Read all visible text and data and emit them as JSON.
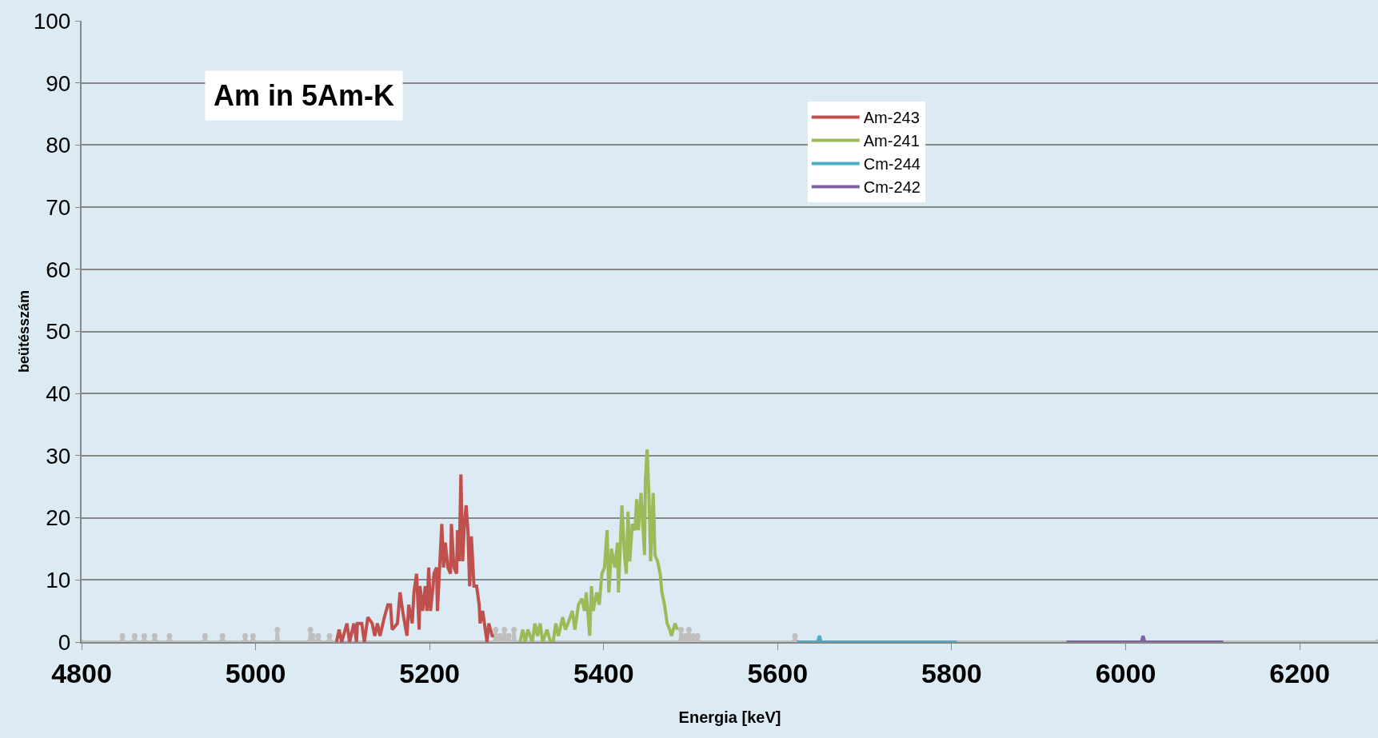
{
  "chart_data": {
    "type": "line",
    "title": "Am in 5Am-K",
    "xlabel": "Energia [keV]",
    "ylabel": "beütésszám",
    "xlim": [
      4800,
      6290
    ],
    "xticks": [
      4800,
      5000,
      5200,
      5400,
      5600,
      5800,
      6000,
      6200
    ],
    "ylim": [
      0,
      100
    ],
    "yticks": [
      0,
      10,
      20,
      30,
      40,
      50,
      60,
      70,
      80,
      90,
      100
    ],
    "grid": "y",
    "legend": "top",
    "marker": "none",
    "line_style": "solid",
    "series": [
      {
        "color": "#bfbfbf",
        "marker": "circle",
        "x": [
          4800,
          4846,
          4847,
          4848,
          4860,
          4861,
          4862,
          4871,
          4872,
          4873,
          4883,
          4884,
          4885,
          4900,
          4901,
          4902,
          4941,
          4942,
          4943,
          4961,
          4962,
          4963,
          4987,
          4988,
          4989,
          4996,
          4997,
          4998,
          5024,
          5025,
          5026,
          5062,
          5063,
          5064,
          5065,
          5066,
          5067,
          5071,
          5072,
          5073,
          5084,
          5085,
          5086,
          5275,
          5276,
          5277,
          5280,
          5281,
          5282,
          5285,
          5286,
          5287,
          5290,
          5291,
          5292,
          5296,
          5297,
          5298,
          5488,
          5489,
          5490,
          5493,
          5494,
          5495,
          5497,
          5498,
          5499,
          5502,
          5503,
          5504,
          5507,
          5508,
          5509,
          5619,
          5620,
          5621,
          6290
        ],
        "values": [
          0,
          0,
          1,
          0,
          0,
          1,
          0,
          0,
          1,
          0,
          0,
          1,
          0,
          0,
          1,
          0,
          0,
          1,
          0,
          0,
          1,
          0,
          0,
          1,
          0,
          0,
          1,
          0,
          0,
          2,
          0,
          0,
          2,
          0,
          0,
          1,
          0,
          0,
          1,
          0,
          0,
          1,
          0,
          0,
          2,
          0,
          0,
          1,
          0,
          0,
          2,
          0,
          0,
          1,
          0,
          0,
          2,
          0,
          0,
          2,
          0,
          0,
          1,
          0,
          0,
          2,
          0,
          0,
          1,
          0,
          0,
          1,
          0,
          0,
          1,
          0,
          0
        ]
      },
      {
        "name": "Am-243",
        "color": "#c0504d",
        "x": [
          5093,
          5096,
          5099,
          5105,
          5108,
          5113,
          5116,
          5117,
          5122,
          5125,
          5129,
          5134,
          5137,
          5140,
          5143,
          5148,
          5152,
          5155,
          5157,
          5163,
          5166,
          5169,
          5174,
          5176,
          5180,
          5182,
          5185,
          5188,
          5189,
          5192,
          5195,
          5197,
          5199,
          5201,
          5204,
          5205,
          5208,
          5209,
          5214,
          5216,
          5218,
          5221,
          5224,
          5225,
          5228,
          5231,
          5232,
          5234,
          5236,
          5238,
          5240,
          5242,
          5244,
          5246,
          5248,
          5251,
          5254,
          5257,
          5258,
          5261,
          5263,
          5266,
          5268,
          5272,
          5274
        ],
        "values": [
          0,
          2,
          0,
          3,
          0,
          3,
          0,
          3,
          3,
          0,
          4,
          3,
          1,
          3,
          1,
          4,
          6,
          6,
          2,
          3,
          8,
          5,
          1,
          6,
          3,
          8,
          11,
          2,
          9,
          5,
          9,
          5,
          12,
          5,
          9,
          11,
          12,
          5,
          19,
          12,
          16,
          12,
          11,
          19,
          12,
          11,
          18,
          13,
          27,
          13,
          19,
          22,
          18,
          9,
          17,
          9,
          9,
          6,
          3,
          5,
          3,
          0,
          3,
          1,
          1
        ]
      },
      {
        "name": "Am-241",
        "color": "#9bbb59",
        "x": [
          5304,
          5307,
          5310,
          5313,
          5318,
          5321,
          5324,
          5327,
          5330,
          5335,
          5339,
          5342,
          5345,
          5348,
          5353,
          5356,
          5359,
          5364,
          5367,
          5371,
          5375,
          5378,
          5380,
          5384,
          5386,
          5388,
          5392,
          5395,
          5398,
          5401,
          5404,
          5406,
          5409,
          5413,
          5416,
          5417,
          5421,
          5424,
          5426,
          5428,
          5430,
          5432,
          5433,
          5436,
          5438,
          5440,
          5443,
          5447,
          5448,
          5450,
          5452,
          5454,
          5457,
          5459,
          5462,
          5465,
          5467,
          5470,
          5473,
          5476,
          5478,
          5480,
          5482,
          5485
        ],
        "values": [
          0,
          2,
          0,
          2,
          0,
          3,
          1,
          3,
          0,
          2,
          0,
          0,
          3,
          1,
          4,
          2,
          3,
          5,
          2,
          6,
          7,
          5,
          8,
          1,
          9,
          5,
          8,
          6,
          11,
          12,
          18,
          8,
          15,
          12,
          16,
          8,
          22,
          14,
          11,
          21,
          13,
          17,
          19,
          18,
          23,
          18,
          24,
          14,
          26,
          31,
          24,
          13,
          24,
          14,
          13,
          11,
          8,
          6,
          3,
          2,
          1,
          2,
          3,
          2
        ]
      },
      {
        "name": "Cm-244",
        "color": "#4bacc6",
        "x": [
          5622,
          5646,
          5648,
          5650,
          5806
        ],
        "values": [
          0,
          0,
          1,
          0,
          0
        ]
      },
      {
        "name": "Cm-242",
        "color": "#8064a2",
        "x": [
          5932,
          6018,
          6020,
          6022,
          6112
        ],
        "values": [
          0,
          0,
          1,
          0,
          0
        ]
      }
    ]
  }
}
